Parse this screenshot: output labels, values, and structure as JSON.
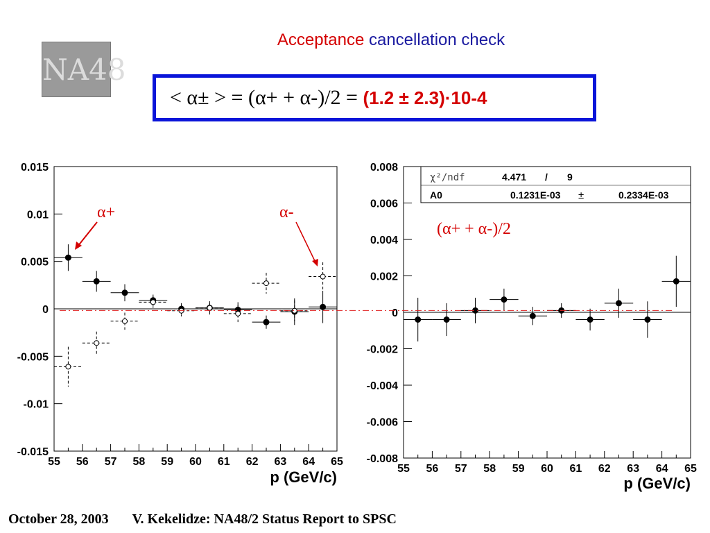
{
  "slide": {
    "title_part1": "Acceptance",
    "title_part2": "cancellation check",
    "logo_text": "NA48",
    "formula": {
      "lhs": "< α± >",
      "eq1": "= (α+ + α-)/2",
      "eq2": "=",
      "result": "(1.2 ± 2.3)·10-4"
    },
    "footer_date": "October 28, 2003",
    "footer_title": "V. Kekelidze: NA48/2 Status Report to SPSC"
  },
  "chart_data": [
    {
      "type": "scatter",
      "xlabel": "p (GeV/c)",
      "ylabel": "",
      "xlim": [
        55,
        65
      ],
      "ylim": [
        -0.015,
        0.015
      ],
      "xticks": [
        "55",
        "56",
        "57",
        "58",
        "59",
        "60",
        "61",
        "62",
        "63",
        "64",
        "65"
      ],
      "yticks": [
        "0.015",
        "0.01",
        "0.005",
        "0",
        "-0.005",
        "-0.01",
        "-0.015"
      ],
      "reference_line_y": 0.0001,
      "annotations": [
        {
          "text": "α+",
          "x": 56.5,
          "y": 0.0098
        },
        {
          "text": "α-",
          "x": 63.3,
          "y": 0.0098
        }
      ],
      "series": [
        {
          "label": "α+",
          "marker": "filled",
          "x": [
            55.5,
            56.5,
            57.5,
            58.5,
            59.5,
            60.5,
            61.5,
            62.5,
            63.5,
            64.5
          ],
          "y": [
            0.0054,
            0.0029,
            0.0017,
            0.0009,
            0.0,
            0.0001,
            -0.0001,
            -0.0014,
            -0.0003,
            0.0002
          ],
          "yerr": [
            0.0014,
            0.0011,
            0.0009,
            0.0006,
            0.0006,
            0.0007,
            0.0008,
            0.0007,
            0.0014,
            0.0017
          ]
        },
        {
          "label": "α-",
          "marker": "open",
          "x": [
            55.5,
            56.5,
            57.5,
            58.5,
            59.5,
            60.5,
            61.5,
            62.5,
            63.5,
            64.5
          ],
          "y": [
            -0.0061,
            -0.0036,
            -0.0013,
            0.0007,
            -0.0002,
            0.0001,
            -0.0005,
            0.0027,
            -0.0002,
            0.0034
          ],
          "yerr": [
            0.0021,
            0.0012,
            0.0009,
            0.0006,
            0.0006,
            0.0005,
            0.0009,
            0.0011,
            0.0011,
            0.0015
          ]
        }
      ]
    },
    {
      "type": "scatter",
      "xlabel": "p (GeV/c)",
      "ylabel": "",
      "xlim": [
        55,
        65
      ],
      "ylim": [
        -0.008,
        0.008
      ],
      "xticks": [
        "55",
        "56",
        "57",
        "58",
        "59",
        "60",
        "61",
        "62",
        "63",
        "64",
        "65"
      ],
      "yticks": [
        "0.008",
        "0.006",
        "0.004",
        "0.002",
        "0",
        "-0.002",
        "-0.004",
        "-0.006",
        "-0.008"
      ],
      "reference_line_y": 0.0001,
      "annotation": "(α+ + α-)/2",
      "fit": {
        "chi2_label": "χ²/ndf",
        "chi2": "4.471",
        "slash": "/",
        "ndf": "9",
        "param_name": "A0",
        "param_value": "0.1231E-03",
        "pm": "±",
        "param_error": "0.2334E-03",
        "value": 0.000123
      },
      "series": [
        {
          "label": "(α+ + α-)/2",
          "marker": "filled",
          "x": [
            55.5,
            56.5,
            57.5,
            58.5,
            59.5,
            60.5,
            61.5,
            62.5,
            63.5,
            64.5
          ],
          "y": [
            -0.0004,
            -0.0004,
            0.0001,
            0.0007,
            -0.0002,
            0.0001,
            -0.0004,
            0.0005,
            -0.0004,
            0.0017
          ],
          "yerr": [
            0.0012,
            0.0009,
            0.0007,
            0.0006,
            0.0005,
            0.0004,
            0.0006,
            0.0008,
            0.001,
            0.0014
          ]
        }
      ]
    }
  ]
}
